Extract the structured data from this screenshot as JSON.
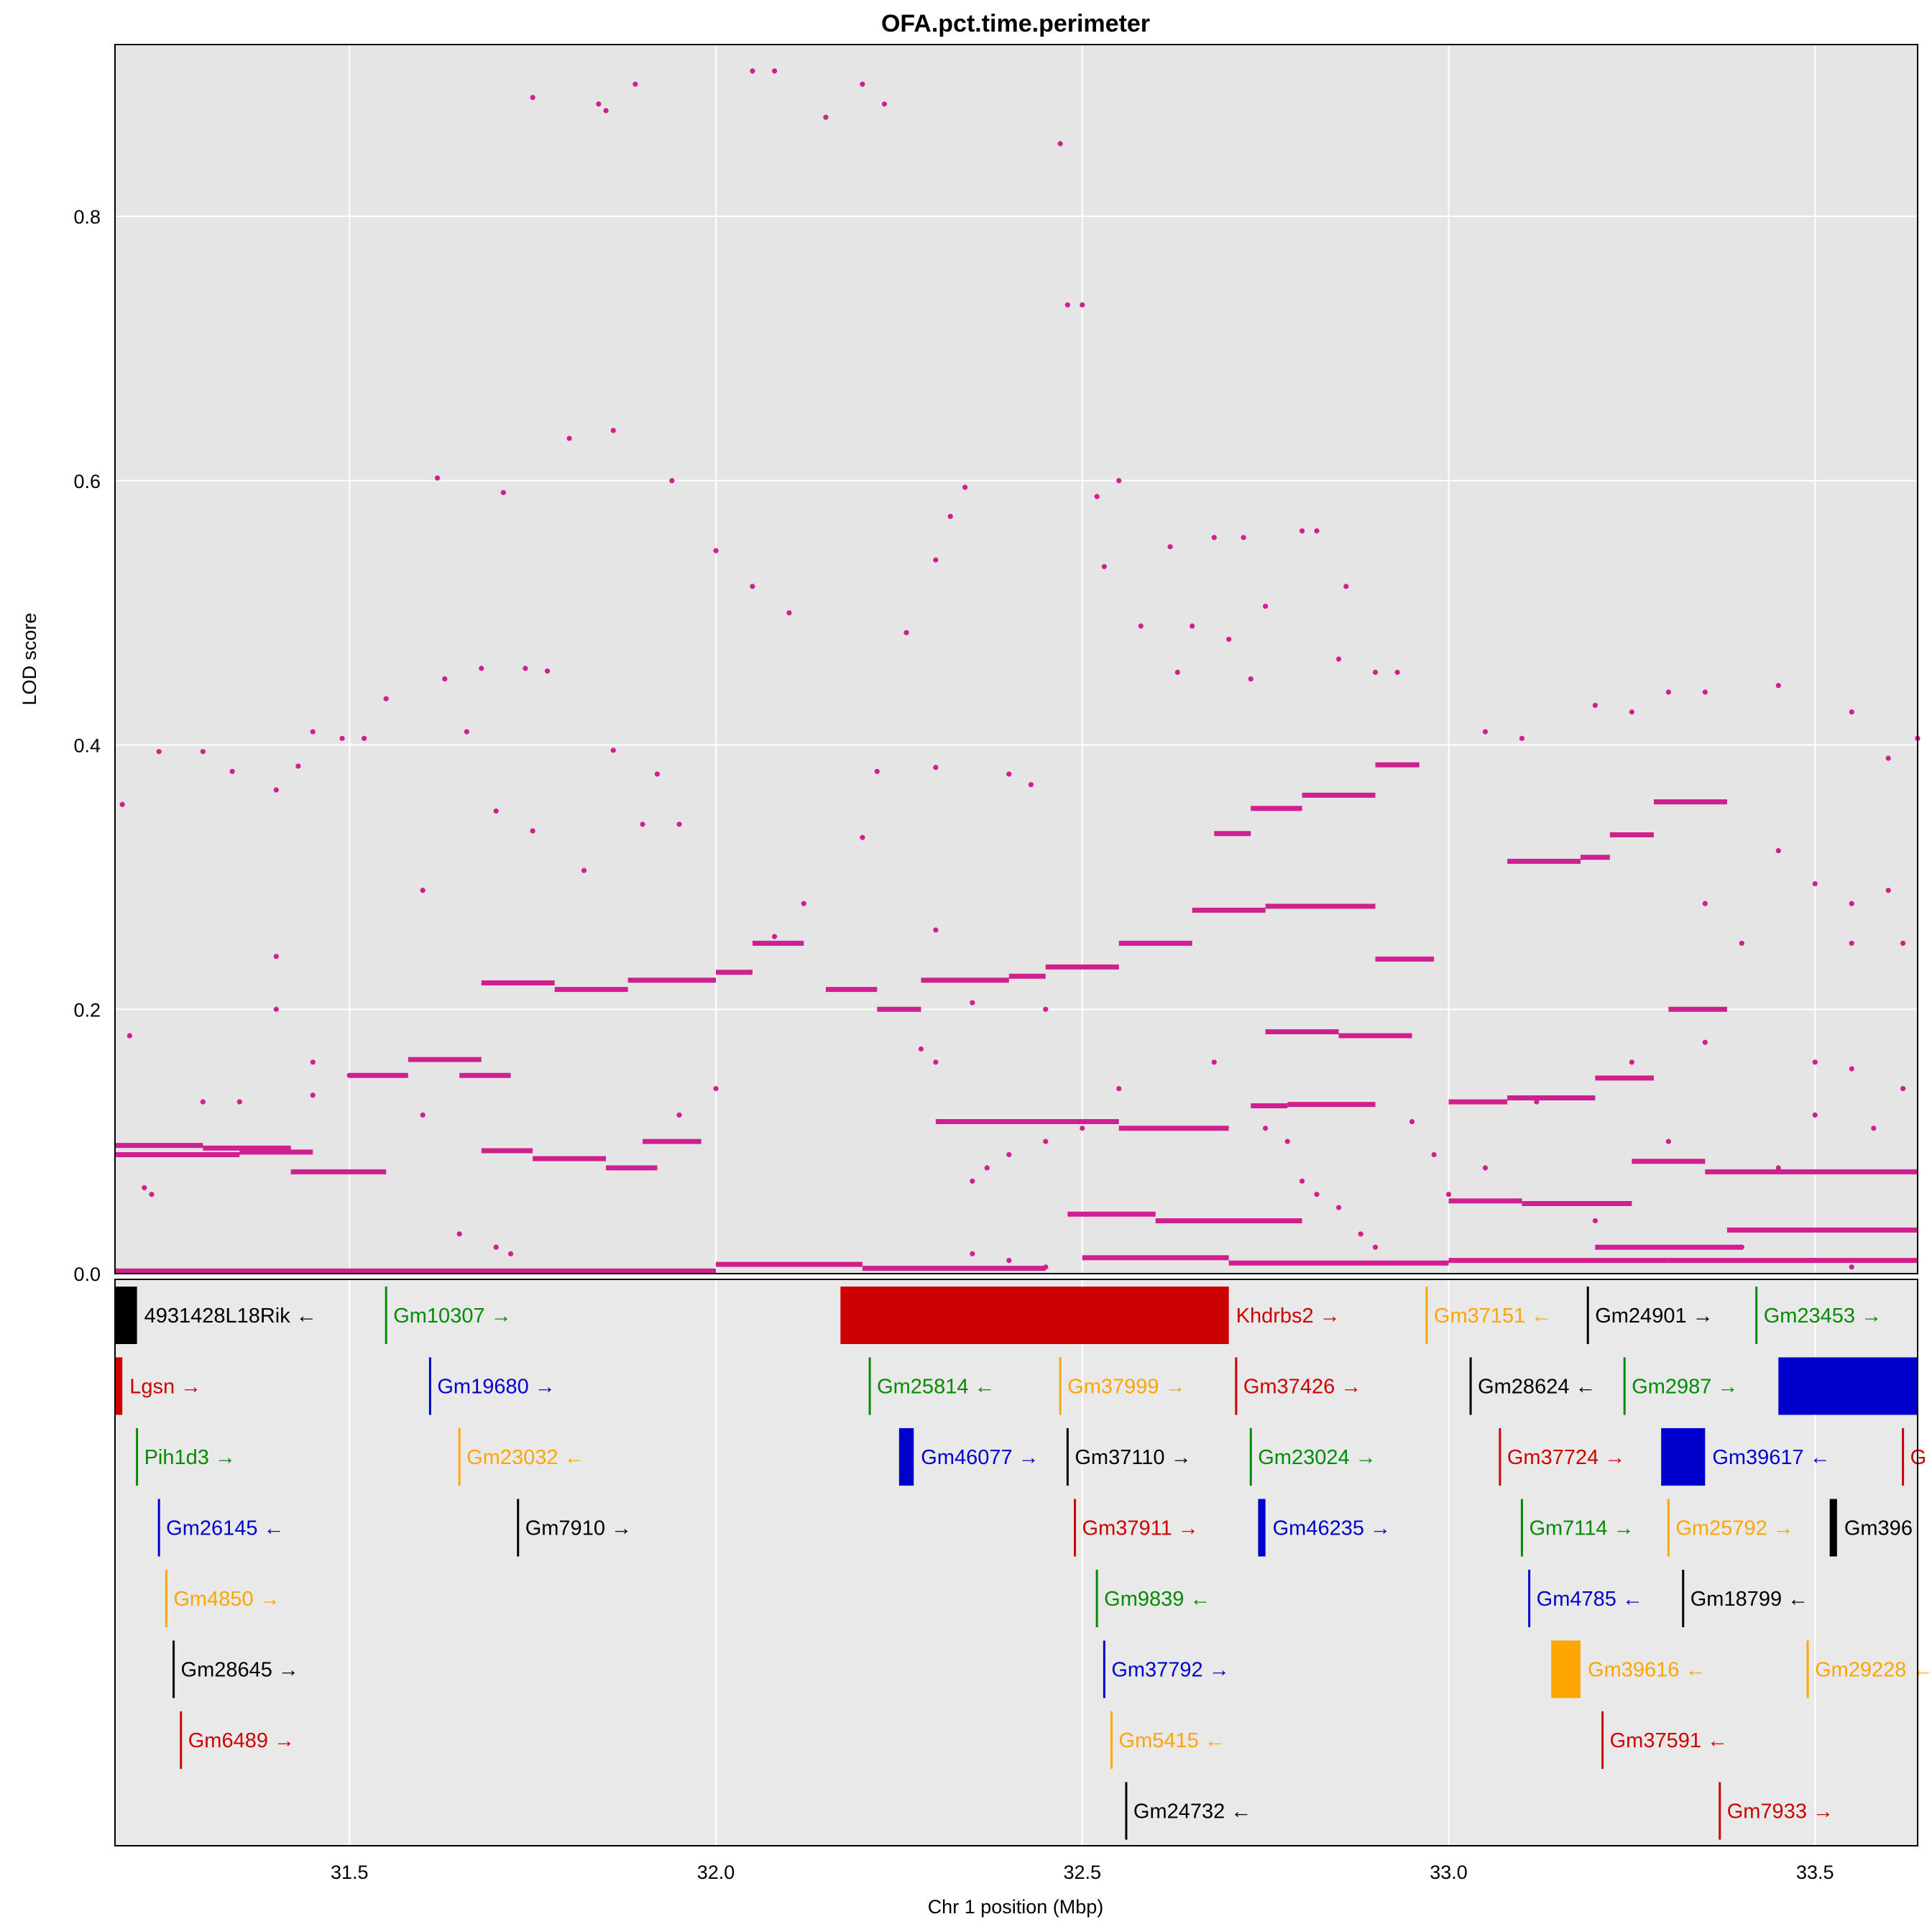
{
  "chart_data": {
    "type": "scatter",
    "title": "OFA.pct.time.perimeter",
    "xlabel": "Chr 1 position (Mbp)",
    "ylabel": "LOD score",
    "xlim": [
      31.18,
      33.64
    ],
    "ylim": [
      0,
      0.93
    ],
    "x_ticks": [
      "31.5",
      "32.0",
      "32.5",
      "33.0",
      "33.5"
    ],
    "y_ticks": [
      "0.0",
      "0.2",
      "0.4",
      "0.6",
      "0.8"
    ],
    "grid": true,
    "point_color": "#D02090",
    "panel_bg": "#E5E5E5",
    "scatter_points": [
      [
        31.19,
        0.355
      ],
      [
        31.2,
        0.18
      ],
      [
        31.24,
        0.395
      ],
      [
        31.3,
        0.395
      ],
      [
        31.34,
        0.38
      ],
      [
        31.4,
        0.366
      ],
      [
        31.43,
        0.384
      ],
      [
        31.45,
        0.41
      ],
      [
        31.49,
        0.405
      ],
      [
        31.52,
        0.405
      ],
      [
        31.55,
        0.435
      ],
      [
        31.62,
        0.602
      ],
      [
        31.63,
        0.45
      ],
      [
        31.66,
        0.41
      ],
      [
        31.68,
        0.458
      ],
      [
        31.71,
        0.591
      ],
      [
        31.74,
        0.458
      ],
      [
        31.77,
        0.456
      ],
      [
        31.75,
        0.89
      ],
      [
        31.8,
        0.632
      ],
      [
        31.84,
        0.885
      ],
      [
        31.85,
        0.88
      ],
      [
        31.86,
        0.638
      ],
      [
        31.89,
        0.9
      ],
      [
        31.94,
        0.6
      ],
      [
        31.86,
        0.396
      ],
      [
        31.92,
        0.378
      ],
      [
        31.95,
        0.34
      ],
      [
        32.0,
        0.547
      ],
      [
        32.05,
        0.52
      ],
      [
        32.1,
        0.5
      ],
      [
        32.05,
        0.91
      ],
      [
        32.08,
        0.91
      ],
      [
        32.15,
        0.875
      ],
      [
        32.2,
        0.9
      ],
      [
        32.23,
        0.885
      ],
      [
        32.26,
        0.485
      ],
      [
        32.3,
        0.54
      ],
      [
        32.32,
        0.573
      ],
      [
        32.34,
        0.595
      ],
      [
        32.47,
        0.855
      ],
      [
        32.48,
        0.733
      ],
      [
        32.5,
        0.733
      ],
      [
        32.52,
        0.588
      ],
      [
        32.55,
        0.6
      ],
      [
        32.53,
        0.535
      ],
      [
        32.62,
        0.55
      ],
      [
        32.68,
        0.557
      ],
      [
        32.72,
        0.557
      ],
      [
        32.8,
        0.562
      ],
      [
        32.82,
        0.562
      ],
      [
        32.86,
        0.52
      ],
      [
        32.75,
        0.505
      ],
      [
        32.85,
        0.465
      ],
      [
        32.9,
        0.455
      ],
      [
        32.93,
        0.455
      ],
      [
        32.58,
        0.49
      ],
      [
        32.65,
        0.49
      ],
      [
        32.7,
        0.48
      ],
      [
        32.73,
        0.45
      ],
      [
        32.63,
        0.455
      ],
      [
        33.05,
        0.41
      ],
      [
        33.1,
        0.405
      ],
      [
        33.2,
        0.43
      ],
      [
        33.25,
        0.425
      ],
      [
        33.3,
        0.44
      ],
      [
        33.35,
        0.44
      ],
      [
        33.45,
        0.445
      ],
      [
        33.55,
        0.425
      ],
      [
        33.6,
        0.39
      ],
      [
        33.64,
        0.405
      ],
      [
        32.22,
        0.38
      ],
      [
        32.3,
        0.383
      ],
      [
        32.4,
        0.378
      ],
      [
        32.43,
        0.37
      ],
      [
        31.6,
        0.29
      ],
      [
        31.7,
        0.35
      ],
      [
        31.75,
        0.335
      ],
      [
        31.82,
        0.305
      ],
      [
        31.9,
        0.34
      ],
      [
        32.2,
        0.33
      ],
      [
        32.08,
        0.255
      ],
      [
        32.12,
        0.28
      ],
      [
        32.3,
        0.26
      ],
      [
        31.4,
        0.24
      ],
      [
        31.4,
        0.2
      ],
      [
        31.5,
        0.15
      ],
      [
        31.45,
        0.16
      ],
      [
        32.35,
        0.205
      ],
      [
        32.45,
        0.2
      ],
      [
        33.45,
        0.32
      ],
      [
        33.5,
        0.295
      ],
      [
        33.55,
        0.28
      ],
      [
        33.6,
        0.29
      ],
      [
        33.55,
        0.25
      ],
      [
        33.62,
        0.25
      ],
      [
        33.35,
        0.28
      ],
      [
        33.4,
        0.25
      ],
      [
        33.5,
        0.16
      ],
      [
        33.55,
        0.155
      ],
      [
        33.62,
        0.14
      ],
      [
        33.25,
        0.16
      ],
      [
        33.35,
        0.175
      ],
      [
        32.35,
        0.07
      ],
      [
        32.37,
        0.08
      ],
      [
        32.4,
        0.09
      ],
      [
        32.45,
        0.1
      ],
      [
        32.5,
        0.11
      ],
      [
        32.8,
        0.07
      ],
      [
        32.82,
        0.06
      ],
      [
        32.85,
        0.05
      ],
      [
        32.88,
        0.03
      ],
      [
        32.35,
        0.015
      ],
      [
        32.4,
        0.01
      ],
      [
        32.45,
        0.005
      ],
      [
        32.9,
        0.02
      ],
      [
        33.0,
        0.06
      ],
      [
        33.05,
        0.08
      ],
      [
        33.2,
        0.04
      ],
      [
        33.4,
        0.02
      ],
      [
        33.5,
        0.01
      ],
      [
        33.55,
        0.005
      ],
      [
        31.22,
        0.065
      ],
      [
        31.23,
        0.06
      ],
      [
        31.3,
        0.13
      ],
      [
        31.35,
        0.13
      ],
      [
        31.45,
        0.135
      ],
      [
        31.6,
        0.12
      ],
      [
        31.65,
        0.03
      ],
      [
        31.7,
        0.02
      ],
      [
        31.72,
        0.015
      ],
      [
        31.95,
        0.12
      ],
      [
        32.0,
        0.14
      ],
      [
        32.3,
        0.16
      ],
      [
        32.28,
        0.17
      ],
      [
        32.55,
        0.14
      ],
      [
        32.68,
        0.16
      ],
      [
        32.75,
        0.11
      ],
      [
        32.78,
        0.1
      ],
      [
        32.95,
        0.115
      ],
      [
        32.98,
        0.09
      ],
      [
        33.12,
        0.13
      ],
      [
        33.3,
        0.1
      ],
      [
        33.45,
        0.08
      ],
      [
        33.5,
        0.12
      ],
      [
        33.58,
        0.11
      ]
    ],
    "segments": [
      {
        "x0": 31.18,
        "x1": 31.3,
        "y": 0.097
      },
      {
        "x0": 31.3,
        "x1": 31.42,
        "y": 0.095
      },
      {
        "x0": 31.18,
        "x1": 31.35,
        "y": 0.09
      },
      {
        "x0": 31.35,
        "x1": 31.45,
        "y": 0.092
      },
      {
        "x0": 31.42,
        "x1": 31.55,
        "y": 0.077
      },
      {
        "x0": 31.5,
        "x1": 31.58,
        "y": 0.15
      },
      {
        "x0": 31.58,
        "x1": 31.68,
        "y": 0.162
      },
      {
        "x0": 31.65,
        "x1": 31.72,
        "y": 0.15
      },
      {
        "x0": 31.68,
        "x1": 31.75,
        "y": 0.093
      },
      {
        "x0": 31.75,
        "x1": 31.85,
        "y": 0.087
      },
      {
        "x0": 31.85,
        "x1": 31.92,
        "y": 0.08
      },
      {
        "x0": 31.9,
        "x1": 31.98,
        "y": 0.1
      },
      {
        "x0": 31.68,
        "x1": 31.78,
        "y": 0.22
      },
      {
        "x0": 31.78,
        "x1": 31.88,
        "y": 0.215
      },
      {
        "x0": 31.88,
        "x1": 32.0,
        "y": 0.222
      },
      {
        "x0": 32.0,
        "x1": 32.05,
        "y": 0.228
      },
      {
        "x0": 32.05,
        "x1": 32.12,
        "y": 0.25
      },
      {
        "x0": 32.15,
        "x1": 32.22,
        "y": 0.215
      },
      {
        "x0": 32.22,
        "x1": 32.28,
        "y": 0.2
      },
      {
        "x0": 32.28,
        "x1": 32.4,
        "y": 0.222
      },
      {
        "x0": 32.4,
        "x1": 32.45,
        "y": 0.225
      },
      {
        "x0": 32.45,
        "x1": 32.55,
        "y": 0.232
      },
      {
        "x0": 32.55,
        "x1": 32.65,
        "y": 0.25
      },
      {
        "x0": 32.65,
        "x1": 32.75,
        "y": 0.275
      },
      {
        "x0": 32.75,
        "x1": 32.9,
        "y": 0.278
      },
      {
        "x0": 32.9,
        "x1": 32.98,
        "y": 0.238
      },
      {
        "x0": 32.68,
        "x1": 32.73,
        "y": 0.333
      },
      {
        "x0": 32.73,
        "x1": 32.8,
        "y": 0.352
      },
      {
        "x0": 32.8,
        "x1": 32.9,
        "y": 0.362
      },
      {
        "x0": 32.9,
        "x1": 32.96,
        "y": 0.385
      },
      {
        "x0": 32.73,
        "x1": 32.78,
        "y": 0.127
      },
      {
        "x0": 32.78,
        "x1": 32.9,
        "y": 0.128
      },
      {
        "x0": 32.75,
        "x1": 32.85,
        "y": 0.183
      },
      {
        "x0": 32.85,
        "x1": 32.95,
        "y": 0.18
      },
      {
        "x0": 33.0,
        "x1": 33.08,
        "y": 0.13
      },
      {
        "x0": 33.08,
        "x1": 33.2,
        "y": 0.133
      },
      {
        "x0": 33.2,
        "x1": 33.28,
        "y": 0.148
      },
      {
        "x0": 33.08,
        "x1": 33.18,
        "y": 0.312
      },
      {
        "x0": 33.18,
        "x1": 33.22,
        "y": 0.315
      },
      {
        "x0": 33.22,
        "x1": 33.28,
        "y": 0.332
      },
      {
        "x0": 33.28,
        "x1": 33.38,
        "y": 0.357
      },
      {
        "x0": 33.3,
        "x1": 33.38,
        "y": 0.2
      },
      {
        "x0": 33.0,
        "x1": 33.1,
        "y": 0.055
      },
      {
        "x0": 33.1,
        "x1": 33.25,
        "y": 0.053
      },
      {
        "x0": 33.25,
        "x1": 33.35,
        "y": 0.085
      },
      {
        "x0": 33.35,
        "x1": 33.64,
        "y": 0.077
      },
      {
        "x0": 33.38,
        "x1": 33.64,
        "y": 0.033
      },
      {
        "x0": 33.2,
        "x1": 33.4,
        "y": 0.02
      },
      {
        "x0": 32.3,
        "x1": 32.55,
        "y": 0.115
      },
      {
        "x0": 32.55,
        "x1": 32.7,
        "y": 0.11
      },
      {
        "x0": 32.48,
        "x1": 32.6,
        "y": 0.045
      },
      {
        "x0": 32.6,
        "x1": 32.8,
        "y": 0.04
      },
      {
        "x0": 32.5,
        "x1": 32.7,
        "y": 0.012
      },
      {
        "x0": 32.7,
        "x1": 33.0,
        "y": 0.008
      },
      {
        "x0": 33.0,
        "x1": 33.3,
        "y": 0.01
      },
      {
        "x0": 31.18,
        "x1": 32.0,
        "y": 0.002
      },
      {
        "x0": 32.0,
        "x1": 32.2,
        "y": 0.007
      },
      {
        "x0": 32.2,
        "x1": 32.45,
        "y": 0.004
      },
      {
        "x0": 33.3,
        "x1": 33.64,
        "y": 0.01
      }
    ],
    "genes": [
      {
        "name": "4931428L18Rik",
        "strand": "←",
        "start": 31.18,
        "end": 31.21,
        "row": 0,
        "color": "#000000"
      },
      {
        "name": "Gm10307",
        "strand": "→",
        "start": 31.55,
        "end": 31.55,
        "row": 0,
        "color": "#008B00"
      },
      {
        "name": "Khdrbs2",
        "strand": "→",
        "start": 32.17,
        "end": 32.7,
        "row": 0,
        "color": "#CD0000"
      },
      {
        "name": "Gm37151",
        "strand": "←",
        "start": 32.97,
        "end": 32.97,
        "row": 0,
        "color": "#FFA500"
      },
      {
        "name": "Gm24901",
        "strand": "→",
        "start": 33.19,
        "end": 33.19,
        "row": 0,
        "color": "#000000"
      },
      {
        "name": "Gm23453",
        "strand": "→",
        "start": 33.42,
        "end": 33.42,
        "row": 0,
        "color": "#008B00"
      },
      {
        "name": "Lgsn",
        "strand": "→",
        "start": 31.18,
        "end": 31.19,
        "row": 1,
        "color": "#CD0000"
      },
      {
        "name": "Gm19680",
        "strand": "→",
        "start": 31.61,
        "end": 31.61,
        "row": 1,
        "color": "#0000CD"
      },
      {
        "name": "Gm25814",
        "strand": "←",
        "start": 32.21,
        "end": 32.21,
        "row": 1,
        "color": "#008B00"
      },
      {
        "name": "Gm37999",
        "strand": "→",
        "start": 32.47,
        "end": 32.47,
        "row": 1,
        "color": "#FFA500"
      },
      {
        "name": "Gm37426",
        "strand": "→",
        "start": 32.71,
        "end": 32.71,
        "row": 1,
        "color": "#CD0000"
      },
      {
        "name": "Gm28624",
        "strand": "←",
        "start": 33.03,
        "end": 33.03,
        "row": 1,
        "color": "#000000"
      },
      {
        "name": "Gm2987",
        "strand": "→",
        "start": 33.24,
        "end": 33.24,
        "row": 1,
        "color": "#008B00"
      },
      {
        "name": "",
        "strand": "",
        "start": 33.45,
        "end": 33.64,
        "row": 1,
        "color": "#0000CD"
      },
      {
        "name": "Pih1d3",
        "strand": "→",
        "start": 31.21,
        "end": 31.21,
        "row": 2,
        "color": "#008B00"
      },
      {
        "name": "Gm23032",
        "strand": "←",
        "start": 31.65,
        "end": 31.65,
        "row": 2,
        "color": "#FFA500"
      },
      {
        "name": "Gm46077",
        "strand": "→",
        "start": 32.25,
        "end": 32.27,
        "row": 2,
        "color": "#0000CD"
      },
      {
        "name": "Gm37110",
        "strand": "→",
        "start": 32.48,
        "end": 32.48,
        "row": 2,
        "color": "#000000"
      },
      {
        "name": "Gm23024",
        "strand": "→",
        "start": 32.73,
        "end": 32.73,
        "row": 2,
        "color": "#008B00"
      },
      {
        "name": "Gm37724",
        "strand": "→",
        "start": 33.07,
        "end": 33.07,
        "row": 2,
        "color": "#CD0000"
      },
      {
        "name": "Gm39617",
        "strand": "←",
        "start": 33.29,
        "end": 33.35,
        "row": 2,
        "color": "#0000CD"
      },
      {
        "name": "G",
        "strand": "",
        "start": 33.62,
        "end": 33.62,
        "row": 2,
        "color": "#CD0000"
      },
      {
        "name": "Gm26145",
        "strand": "←",
        "start": 31.24,
        "end": 31.24,
        "row": 3,
        "color": "#0000CD"
      },
      {
        "name": "Gm7910",
        "strand": "→",
        "start": 31.73,
        "end": 31.73,
        "row": 3,
        "color": "#000000"
      },
      {
        "name": "Gm37911",
        "strand": "→",
        "start": 32.49,
        "end": 32.49,
        "row": 3,
        "color": "#CD0000"
      },
      {
        "name": "Gm46235",
        "strand": "→",
        "start": 32.74,
        "end": 32.75,
        "row": 3,
        "color": "#0000CD"
      },
      {
        "name": "Gm7114",
        "strand": "→",
        "start": 33.1,
        "end": 33.1,
        "row": 3,
        "color": "#008B00"
      },
      {
        "name": "Gm25792",
        "strand": "→",
        "start": 33.3,
        "end": 33.3,
        "row": 3,
        "color": "#FFA500"
      },
      {
        "name": "Gm396",
        "strand": "",
        "start": 33.52,
        "end": 33.53,
        "row": 3,
        "color": "#000000"
      },
      {
        "name": "Gm4850",
        "strand": "→",
        "start": 31.25,
        "end": 31.25,
        "row": 4,
        "color": "#FFA500"
      },
      {
        "name": "Gm9839",
        "strand": "←",
        "start": 32.52,
        "end": 32.52,
        "row": 4,
        "color": "#008B00"
      },
      {
        "name": "Gm4785",
        "strand": "←",
        "start": 33.11,
        "end": 33.11,
        "row": 4,
        "color": "#0000CD"
      },
      {
        "name": "Gm18799",
        "strand": "←",
        "start": 33.32,
        "end": 33.32,
        "row": 4,
        "color": "#000000"
      },
      {
        "name": "Gm28645",
        "strand": "→",
        "start": 31.26,
        "end": 31.26,
        "row": 5,
        "color": "#000000"
      },
      {
        "name": "Gm37792",
        "strand": "→",
        "start": 32.53,
        "end": 32.53,
        "row": 5,
        "color": "#0000CD"
      },
      {
        "name": "Gm39616",
        "strand": "←",
        "start": 33.14,
        "end": 33.18,
        "row": 5,
        "color": "#FFA500"
      },
      {
        "name": "Gm29228",
        "strand": "←",
        "start": 33.49,
        "end": 33.49,
        "row": 5,
        "color": "#FFA500"
      },
      {
        "name": "Gm6489",
        "strand": "→",
        "start": 31.27,
        "end": 31.27,
        "row": 6,
        "color": "#CD0000"
      },
      {
        "name": "Gm5415",
        "strand": "←",
        "start": 32.54,
        "end": 32.54,
        "row": 6,
        "color": "#FFA500"
      },
      {
        "name": "Gm37591",
        "strand": "←",
        "start": 33.21,
        "end": 33.21,
        "row": 6,
        "color": "#CD0000"
      },
      {
        "name": "Gm24732",
        "strand": "←",
        "start": 32.56,
        "end": 32.56,
        "row": 7,
        "color": "#000000"
      },
      {
        "name": "Gm7933",
        "strand": "→",
        "start": 33.37,
        "end": 33.37,
        "row": 7,
        "color": "#CD0000"
      }
    ]
  }
}
